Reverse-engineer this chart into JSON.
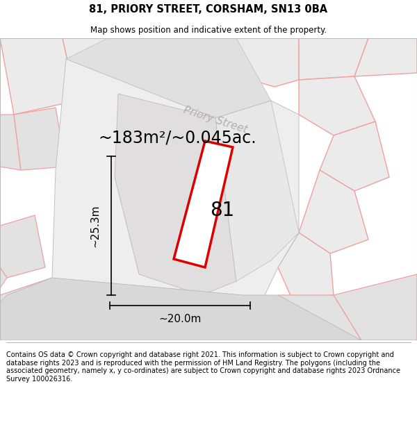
{
  "title": "81, PRIORY STREET, CORSHAM, SN13 0BA",
  "subtitle": "Map shows position and indicative extent of the property.",
  "footer": "Contains OS data © Crown copyright and database right 2021. This information is subject to Crown copyright and database rights 2023 and is reproduced with the permission of HM Land Registry. The polygons (including the associated geometry, namely x, y co-ordinates) are subject to Crown copyright and database rights 2023 Ordnance Survey 100026316.",
  "area_label": "~183m²/~0.045ac.",
  "street_label": "Priory Street",
  "number_label": "81",
  "dim_width": "~20.0m",
  "dim_height": "~25.3m",
  "bg_color": "#f7f7f7",
  "parcel_fill": "#ebebeb",
  "parcel_fill2": "#e2e2e2",
  "road_fill": "#d8d8d8",
  "red_outline": "#dd0000",
  "light_red": "#f0a0a0",
  "white": "#ffffff",
  "title_fontsize": 10.5,
  "subtitle_fontsize": 8.5,
  "footer_fontsize": 7.0,
  "area_fontsize": 17,
  "street_fontsize": 11,
  "number_fontsize": 20,
  "dim_fontsize": 11
}
